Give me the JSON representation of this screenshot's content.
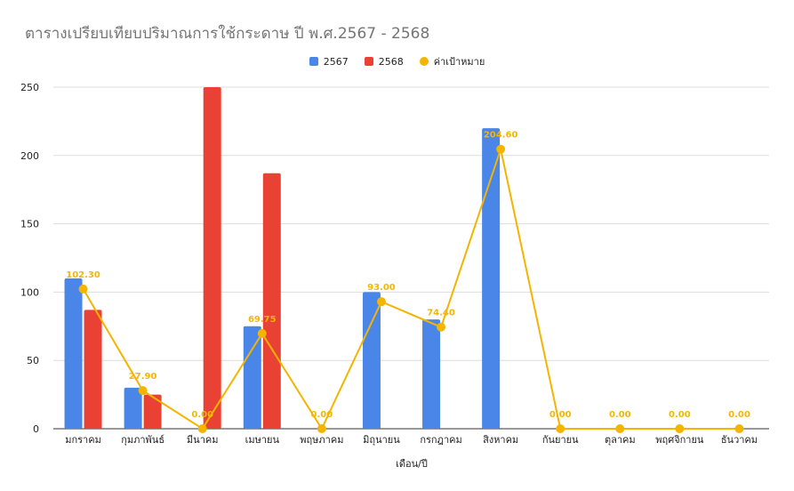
{
  "chart_data": {
    "type": "bar",
    "title": "ตารางเปรียบเทียบปริมาณการใช้กระดาษ ปี พ.ศ.2567 - 2568",
    "xlabel": "เดือน/ปี",
    "ylabel": "",
    "ylim": [
      0,
      250
    ],
    "yticks": [
      0,
      50,
      100,
      150,
      200,
      250
    ],
    "grid": true,
    "legend_position": "top",
    "categories": [
      "มกราคม",
      "กุมภาพันธ์",
      "มีนาคม",
      "เมษายน",
      "พฤษภาคม",
      "มิถุนายน",
      "กรกฎาคม",
      "สิงหาคม",
      "กันยายน",
      "ตุลาคม",
      "พฤศจิกายน",
      "ธันวาคม"
    ],
    "series": [
      {
        "name": "2567",
        "type": "bar",
        "color": "#4a86e8",
        "values": [
          110,
          30,
          0,
          75,
          0,
          100,
          80,
          220,
          0,
          0,
          0,
          0
        ]
      },
      {
        "name": "2568",
        "type": "bar",
        "color": "#e94235",
        "values": [
          87,
          25,
          250,
          187,
          0,
          0,
          0,
          0,
          0,
          0,
          0,
          0
        ]
      },
      {
        "name": "ค่าเป้าหมาย",
        "type": "line",
        "color": "#f4b400",
        "values": [
          102.3,
          27.9,
          0,
          69.75,
          0,
          93,
          74.4,
          204.6,
          0,
          0,
          0,
          0
        ],
        "labels": [
          "102.30",
          "27.90",
          "0.00",
          "69.75",
          "0.00",
          "93.00",
          "74.40",
          "204.60",
          "0.00",
          "0.00",
          "0.00",
          "0.00"
        ]
      }
    ]
  }
}
